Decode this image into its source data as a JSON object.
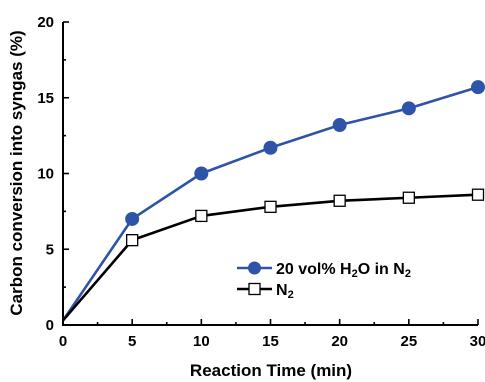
{
  "chart_data": {
    "type": "line",
    "title": "",
    "xlabel": "Reaction Time (min)",
    "ylabel": "Carbon conversion into syngas (%)",
    "xlim": [
      0,
      30
    ],
    "ylim": [
      0,
      20
    ],
    "xticks": [
      0,
      5,
      10,
      15,
      20,
      25,
      30
    ],
    "yticks": [
      0,
      5,
      10,
      15,
      20
    ],
    "grid": false,
    "legend_position": "lower-right",
    "series": [
      {
        "name_parts": [
          "20 vol% H",
          "2",
          "O in N",
          "2"
        ],
        "color": "#2d54a8",
        "marker": "filled-circle",
        "x": [
          0,
          5,
          10,
          15,
          20,
          25,
          30
        ],
        "y": [
          0.3,
          7.0,
          10.0,
          11.7,
          13.2,
          14.3,
          15.7
        ],
        "marker_x": [
          5,
          10,
          15,
          20,
          25,
          30
        ],
        "marker_y": [
          7.0,
          10.0,
          11.7,
          13.2,
          14.3,
          15.7
        ]
      },
      {
        "name_parts": [
          "N",
          "2"
        ],
        "color": "#000000",
        "marker": "open-square",
        "x": [
          0,
          5,
          10,
          15,
          20,
          25,
          30
        ],
        "y": [
          0.3,
          5.6,
          7.2,
          7.8,
          8.2,
          8.4,
          8.6
        ],
        "marker_x": [
          5,
          10,
          15,
          20,
          25,
          30
        ],
        "marker_y": [
          5.6,
          7.2,
          7.8,
          8.2,
          8.4,
          8.6
        ]
      }
    ]
  }
}
